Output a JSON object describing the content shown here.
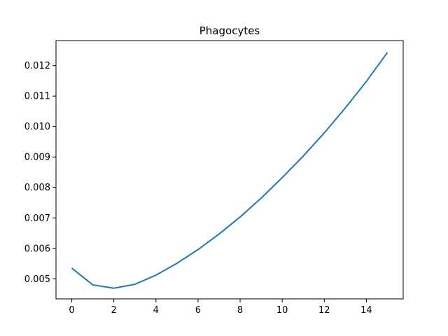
{
  "chart_data": {
    "type": "line",
    "title": "Phagocytes",
    "xlabel": "",
    "ylabel": "",
    "xlim": [
      -0.75,
      15.75
    ],
    "ylim": [
      0.00434,
      0.01282
    ],
    "x_ticks": [
      0,
      2,
      4,
      6,
      8,
      10,
      12,
      14
    ],
    "x_tick_labels": [
      "0",
      "2",
      "4",
      "6",
      "8",
      "10",
      "12",
      "14"
    ],
    "y_ticks": [
      0.005,
      0.006,
      0.007,
      0.008,
      0.009,
      0.01,
      0.011,
      0.012
    ],
    "y_tick_labels": [
      "0.005",
      "0.006",
      "0.007",
      "0.008",
      "0.009",
      "0.010",
      "0.011",
      "0.012"
    ],
    "grid": false,
    "series": [
      {
        "color": "#1f77b4",
        "x": [
          0,
          1,
          2,
          3,
          4,
          5,
          6,
          7,
          8,
          9,
          10,
          11,
          12,
          13,
          14,
          15
        ],
        "y": [
          0.00535,
          0.0048,
          0.00469,
          0.00482,
          0.00512,
          0.00551,
          0.00596,
          0.00647,
          0.00703,
          0.00765,
          0.00832,
          0.00903,
          0.00979,
          0.01061,
          0.01148,
          0.01243
        ]
      }
    ]
  }
}
